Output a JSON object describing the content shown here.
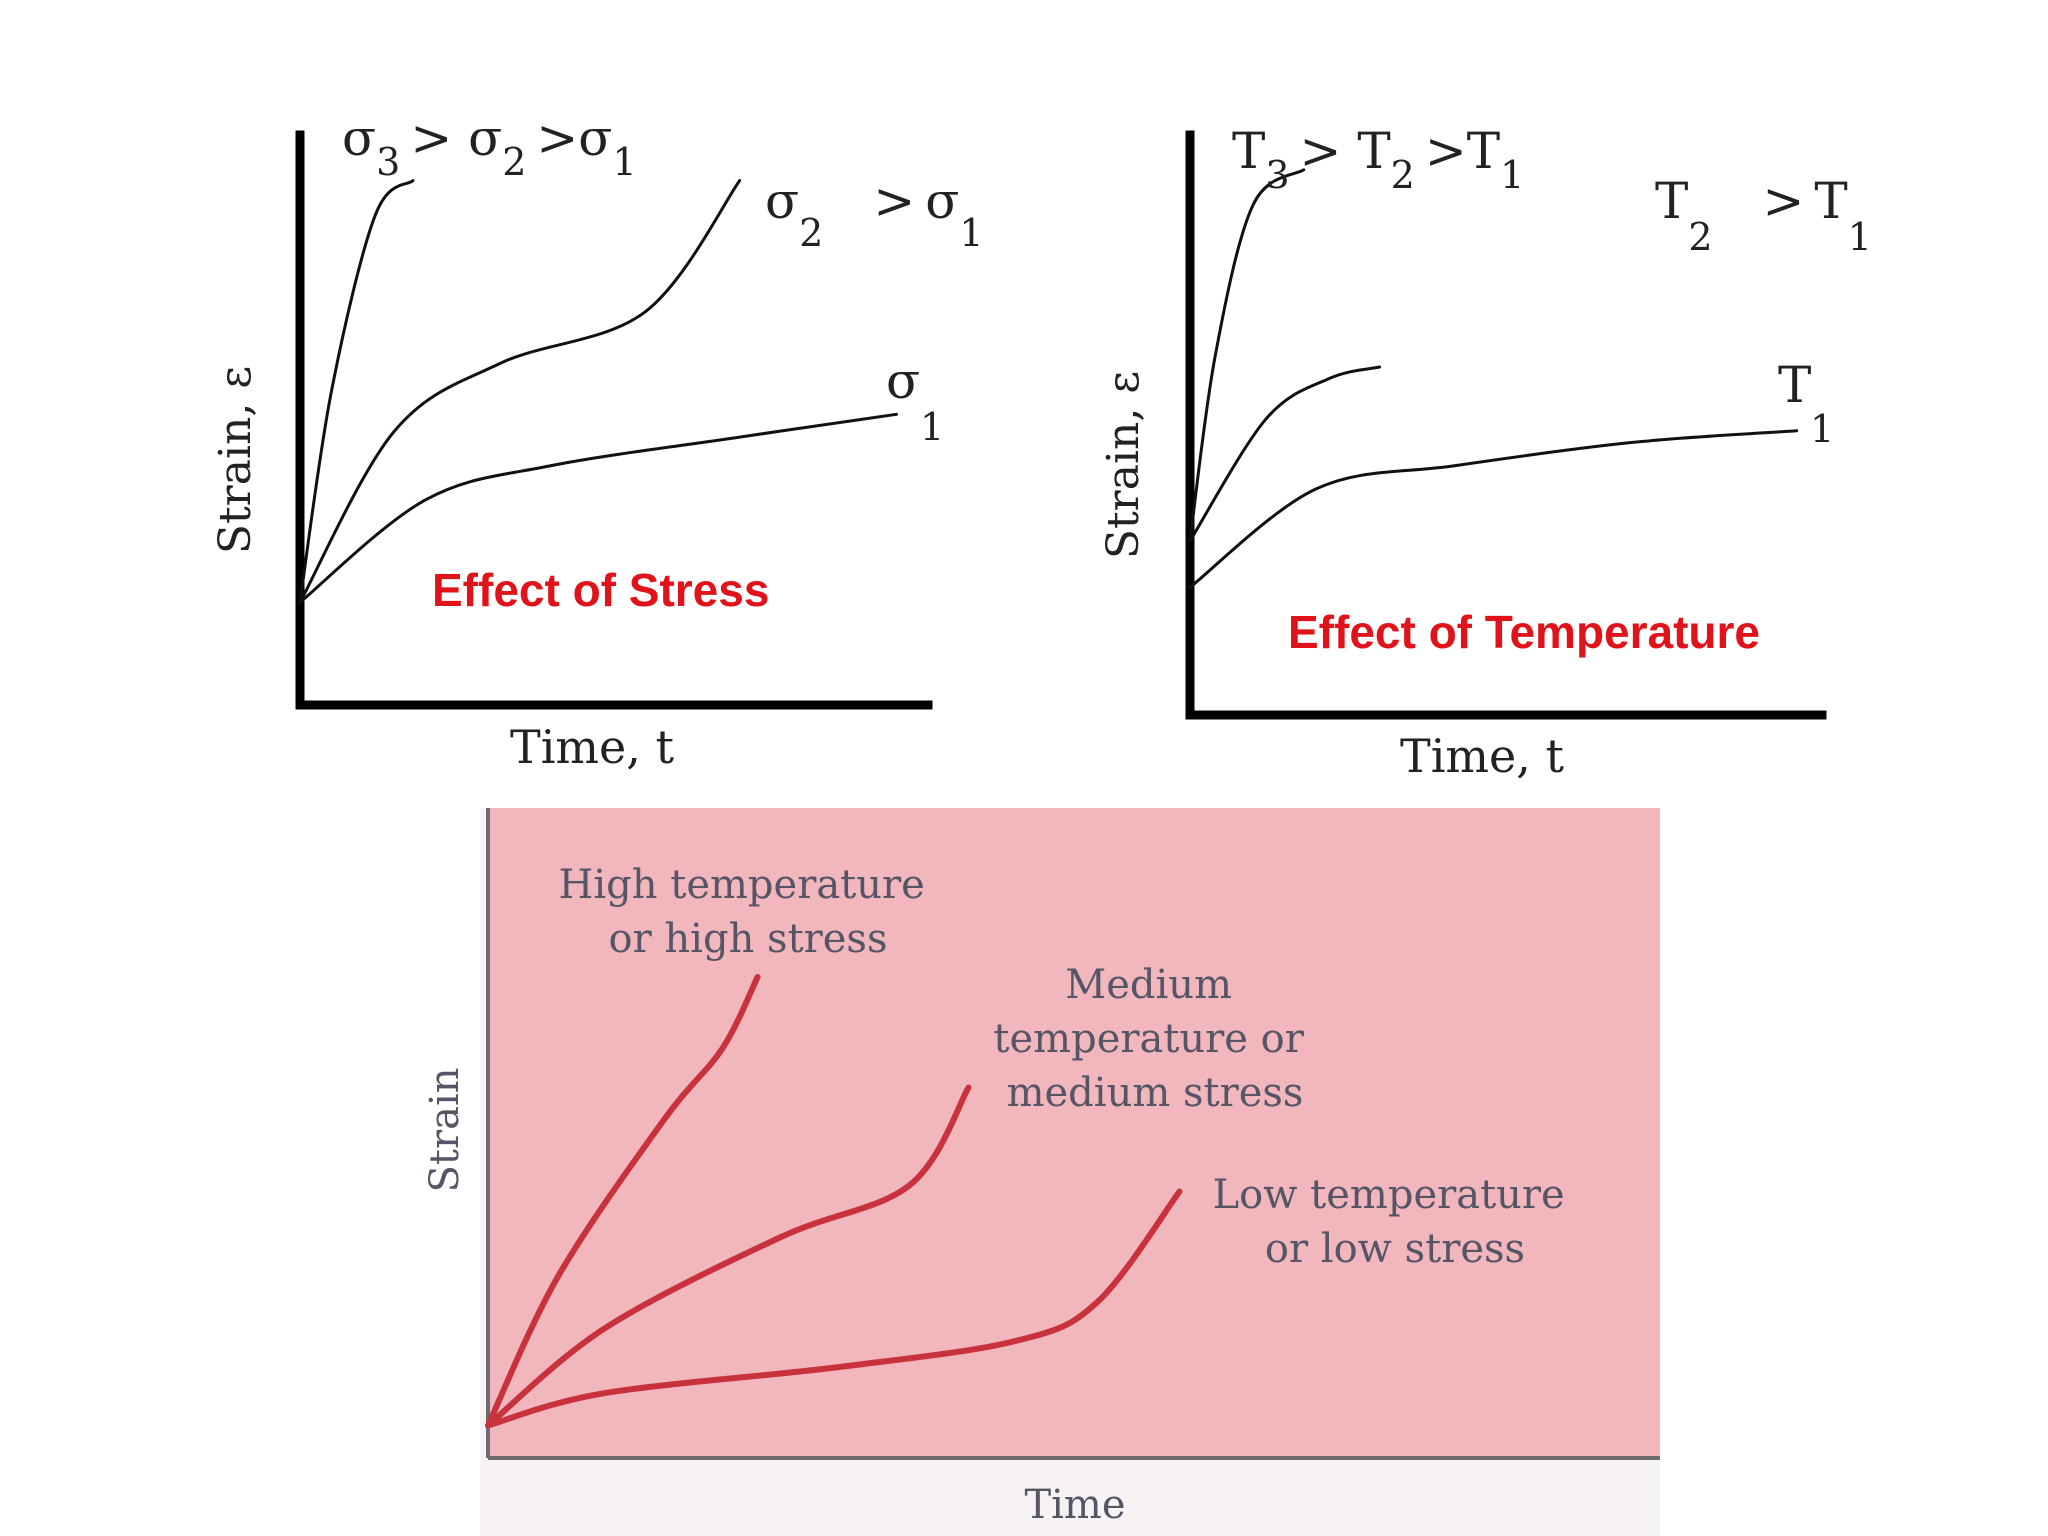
{
  "chart_data": [
    {
      "type": "line",
      "title": "Effect of Stress",
      "xlabel": "Time, t",
      "ylabel": "Strain, ε",
      "condition_label": "σ3 > σ2 >σ1",
      "series": [
        {
          "name": "σ3 > σ2 >σ1",
          "label_main": "σ",
          "label_sub": "3",
          "label_rest": " > σ2 >σ1",
          "x": [
            0,
            0.05,
            0.12,
            0.18
          ],
          "y": [
            0.18,
            0.55,
            0.86,
            0.92
          ]
        },
        {
          "name": "σ2 > σ1",
          "label_main": "σ",
          "label_sub": "2",
          "label_rest": " > σ",
          "label_rest_sub": "1",
          "x": [
            0,
            0.15,
            0.32,
            0.55,
            0.7
          ],
          "y": [
            0.18,
            0.48,
            0.6,
            0.69,
            0.92
          ]
        },
        {
          "name": "σ1",
          "label_main": "σ",
          "label_sub": "1",
          "x": [
            0,
            0.2,
            0.4,
            0.7,
            0.95
          ],
          "y": [
            0.18,
            0.36,
            0.42,
            0.47,
            0.51
          ]
        }
      ]
    },
    {
      "type": "line",
      "title": "Effect of Temperature",
      "xlabel": "Time, t",
      "ylabel": "Strain, ε",
      "condition_label": "T3 > T2 >T1",
      "series": [
        {
          "name": "T3 > T2 >T1",
          "label_main": "T",
          "label_sub": "3",
          "label_rest": " > T2 >T1",
          "x": [
            0,
            0.04,
            0.1,
            0.18
          ],
          "y": [
            0.3,
            0.62,
            0.88,
            0.94
          ]
        },
        {
          "name": "T2 > T1",
          "label_main": "T",
          "label_sub": "2",
          "label_rest": " > T",
          "label_rest_sub": "1",
          "x": [
            0,
            0.12,
            0.22,
            0.3
          ],
          "y": [
            0.3,
            0.51,
            0.58,
            0.6
          ]
        },
        {
          "name": "T1",
          "label_main": "T",
          "label_sub": "1",
          "x": [
            0,
            0.2,
            0.42,
            0.7,
            0.96
          ],
          "y": [
            0.22,
            0.39,
            0.43,
            0.47,
            0.49
          ]
        }
      ]
    },
    {
      "type": "line",
      "title": "",
      "xlabel": "Time",
      "ylabel": "Strain",
      "background": "#f2b6bd",
      "curve_color": "#c8323c",
      "series": [
        {
          "name": "High temperature or high stress",
          "label_lines": [
            "High temperature",
            "or high stress"
          ],
          "x": [
            0,
            0.06,
            0.15,
            0.2,
            0.23
          ],
          "y": [
            0.05,
            0.28,
            0.52,
            0.63,
            0.74
          ]
        },
        {
          "name": "Medium temperature or medium stress",
          "label_lines": [
            "Medium",
            "temperature or",
            "medium stress"
          ],
          "x": [
            0,
            0.1,
            0.25,
            0.36,
            0.41
          ],
          "y": [
            0.05,
            0.2,
            0.34,
            0.42,
            0.57
          ]
        },
        {
          "name": "Low temperature or low stress",
          "label_lines": [
            "Low temperature",
            "or low stress"
          ],
          "x": [
            0,
            0.1,
            0.3,
            0.45,
            0.52,
            0.59
          ],
          "y": [
            0.05,
            0.1,
            0.14,
            0.18,
            0.24,
            0.41
          ]
        }
      ]
    }
  ]
}
